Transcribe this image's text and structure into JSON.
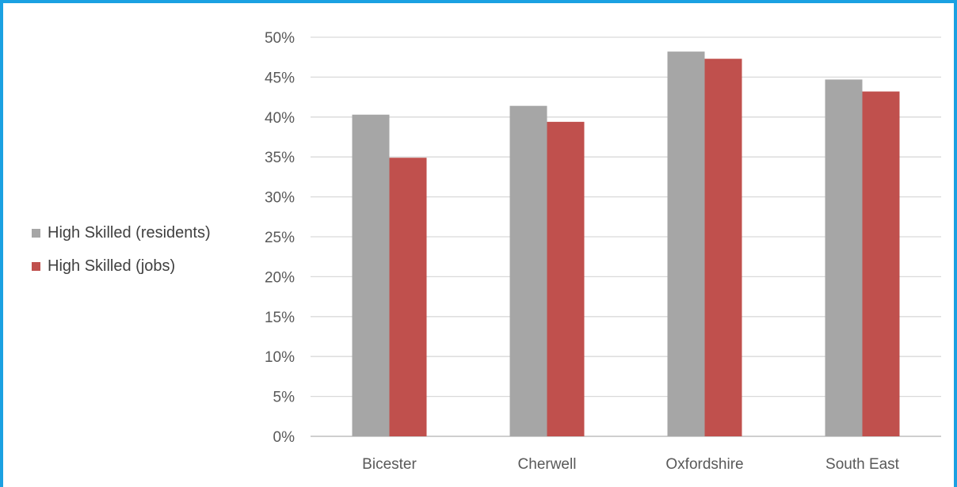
{
  "chart_data": {
    "type": "bar",
    "categories": [
      "Bicester",
      "Cherwell",
      "Oxfordshire",
      "South East"
    ],
    "series": [
      {
        "name": "High Skilled (residents)",
        "color": "#a6a6a6",
        "values": [
          40.3,
          41.4,
          48.2,
          44.7
        ]
      },
      {
        "name": "High Skilled (jobs)",
        "color": "#c0504d",
        "values": [
          34.9,
          39.4,
          47.3,
          43.2
        ]
      }
    ],
    "title": "",
    "xlabel": "",
    "ylabel": "",
    "ylim": [
      0,
      50
    ],
    "yticks": [
      "0%",
      "5%",
      "10%",
      "15%",
      "20%",
      "25%",
      "30%",
      "35%",
      "40%",
      "45%",
      "50%"
    ],
    "grid": true,
    "legend_position": "left",
    "gridline_color": "#d9d9d9",
    "axis_color": "#bfbfbf",
    "frame_color": "#1ba1e2"
  }
}
